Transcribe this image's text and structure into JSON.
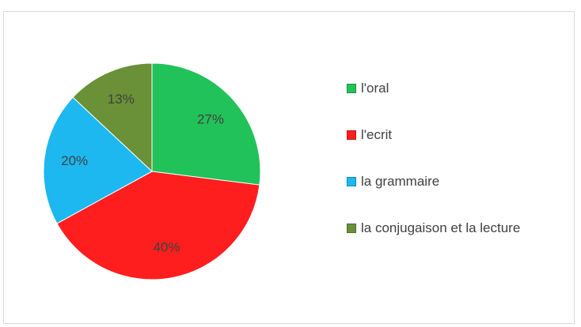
{
  "chart_data": {
    "type": "pie",
    "categories": [
      "l'oral",
      "l'ecrit",
      "la grammaire",
      "la conjugaison et la lecture"
    ],
    "values": [
      27,
      40,
      20,
      13
    ],
    "value_labels": [
      "27%",
      "40%",
      "20%",
      "13%"
    ],
    "colors": [
      "#22c25a",
      "#ff1e1e",
      "#1cb8ef",
      "#6a9038"
    ],
    "legend": "right"
  }
}
